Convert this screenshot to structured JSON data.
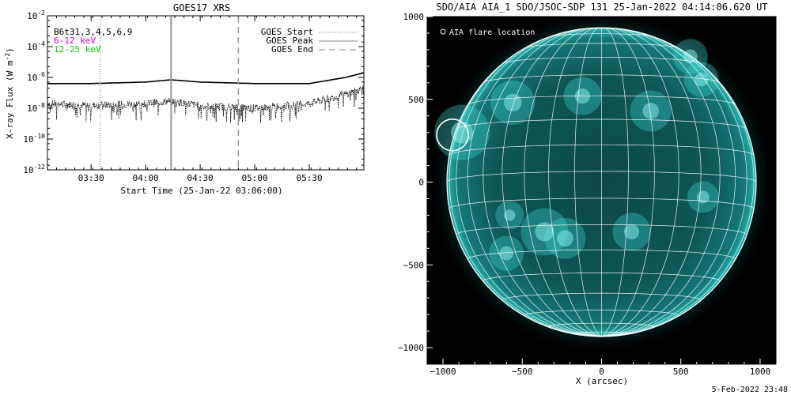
{
  "goes_panel": {
    "title": "GOES17 XRS",
    "legend_channels": [
      "B6t31,3,4,5,6,9",
      "6-12 keV",
      "12-25 keV"
    ],
    "legend_lines": [
      "GOES Start",
      "GOES Peak",
      "GOES End"
    ]
  },
  "aia_panel": {
    "title": "SDO/AIA AIA_1 SDO/JSOC-SDP 131 25-Jan-2022 04:14:06.620 UT",
    "legend": "AIA flare location"
  },
  "footer": {
    "timestamp": "5-Feb-2022 23:48"
  },
  "colors": {
    "channel1": "#000000",
    "channel2": "#d000d0",
    "channel3": "#00d000",
    "event_lines": "#a0a0a0",
    "sun_disk": "#0e5a5a",
    "sun_bright": "#3fd6d0"
  },
  "chart_data": [
    {
      "type": "line",
      "title": "GOES17 XRS",
      "xlabel": "Start Time (25-Jan-22 03:06:00)",
      "ylabel": "X-ray Flux (W m^-2)",
      "x_range": [
        "03:06",
        "06:00"
      ],
      "x_ticks": [
        "03:30",
        "04:00",
        "04:30",
        "05:00",
        "05:30"
      ],
      "y_scale": "log",
      "ylim": [
        1e-12,
        0.01
      ],
      "y_ticks": [
        "10^-12",
        "10^-10",
        "10^-8",
        "10^-6",
        "10^-4",
        "10^-2"
      ],
      "series": [
        {
          "name": "B6t31,3,4,5,6,9",
          "x": [
            "03:06",
            "03:30",
            "04:00",
            "04:14",
            "04:30",
            "05:00",
            "05:30",
            "05:50",
            "06:00"
          ],
          "y": [
            4e-07,
            4e-07,
            5e-07,
            7e-07,
            5e-07,
            4e-07,
            4e-07,
            1e-06,
            2e-06
          ]
        },
        {
          "name": "B6t31,3,4,5,6,9 (short)",
          "x": [
            "03:06",
            "03:30",
            "04:00",
            "04:14",
            "04:30",
            "05:00",
            "05:30",
            "05:50",
            "06:00"
          ],
          "y": [
            2e-08,
            1.5e-08,
            2e-08,
            3e-08,
            1.5e-08,
            1e-08,
            2e-08,
            8e-08,
            2e-07
          ]
        }
      ],
      "events": {
        "GOES Start": "03:35",
        "GOES Peak": "04:14",
        "GOES End": "04:51"
      },
      "legend_position": "top-right"
    },
    {
      "type": "image",
      "title": "SDO/AIA AIA_1 SDO/JSOC-SDP 131 25-Jan-2022 04:14:06.620 UT",
      "xlabel": "X (arcsec)",
      "ylabel": "",
      "xlim": [
        -1100,
        1100
      ],
      "ylim": [
        -1100,
        1000
      ],
      "x_ticks": [
        -1000,
        -500,
        0,
        500,
        1000
      ],
      "y_ticks": [
        1000,
        500,
        0,
        -500,
        -1000
      ],
      "solar_radius_arcsec": 975,
      "flare_location_arcsec": [
        -940,
        285
      ],
      "grid": "heliographic lat/lon 10 deg"
    }
  ]
}
